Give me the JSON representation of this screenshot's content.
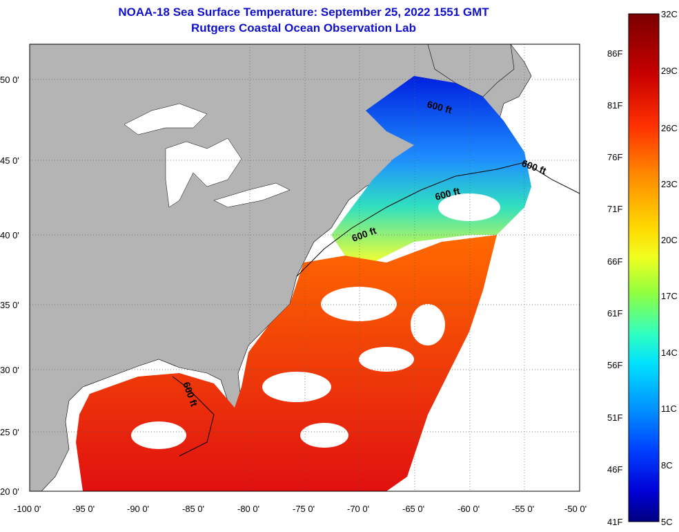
{
  "title": {
    "line1": "NOAA-18 Sea Surface Temperature:  September 25, 2022 1551 GMT",
    "line2": "Rutgers Coastal Ocean Observation Lab"
  },
  "map": {
    "lon_range": [
      -100,
      -50
    ],
    "lat_range": [
      20,
      52.5
    ],
    "x_ticks": [
      "-100 0'",
      "-95 0'",
      "-90 0'",
      "-85 0'",
      "-80 0'",
      "-75 0'",
      "-70 0'",
      "-65 0'",
      "-60 0'",
      "-55 0'",
      "-50 0'"
    ],
    "y_ticks": [
      "50 0'",
      "45 0'",
      "40 0'",
      "35 0'",
      "30 0'",
      "25 0'",
      "20 0'"
    ],
    "contour_label": "600 ft",
    "land_color": "#b4b4b4",
    "nodata_color": "#ffffff"
  },
  "colorbar": {
    "celsius_labels": [
      "32C",
      "29C",
      "26C",
      "23C",
      "20C",
      "17C",
      "14C",
      "11C",
      "8C",
      "5C"
    ],
    "fahrenheit_labels": [
      "86F",
      "81F",
      "76F",
      "71F",
      "66F",
      "61F",
      "56F",
      "51F",
      "46F",
      "41F"
    ],
    "colors_top_to_bottom": [
      "#7a0000",
      "#c80000",
      "#ff3000",
      "#ff8c00",
      "#ffd800",
      "#f0ff20",
      "#90ff40",
      "#30ffc0",
      "#00e0ff",
      "#0090ff",
      "#0040ff",
      "#0000d8",
      "#000080"
    ]
  }
}
